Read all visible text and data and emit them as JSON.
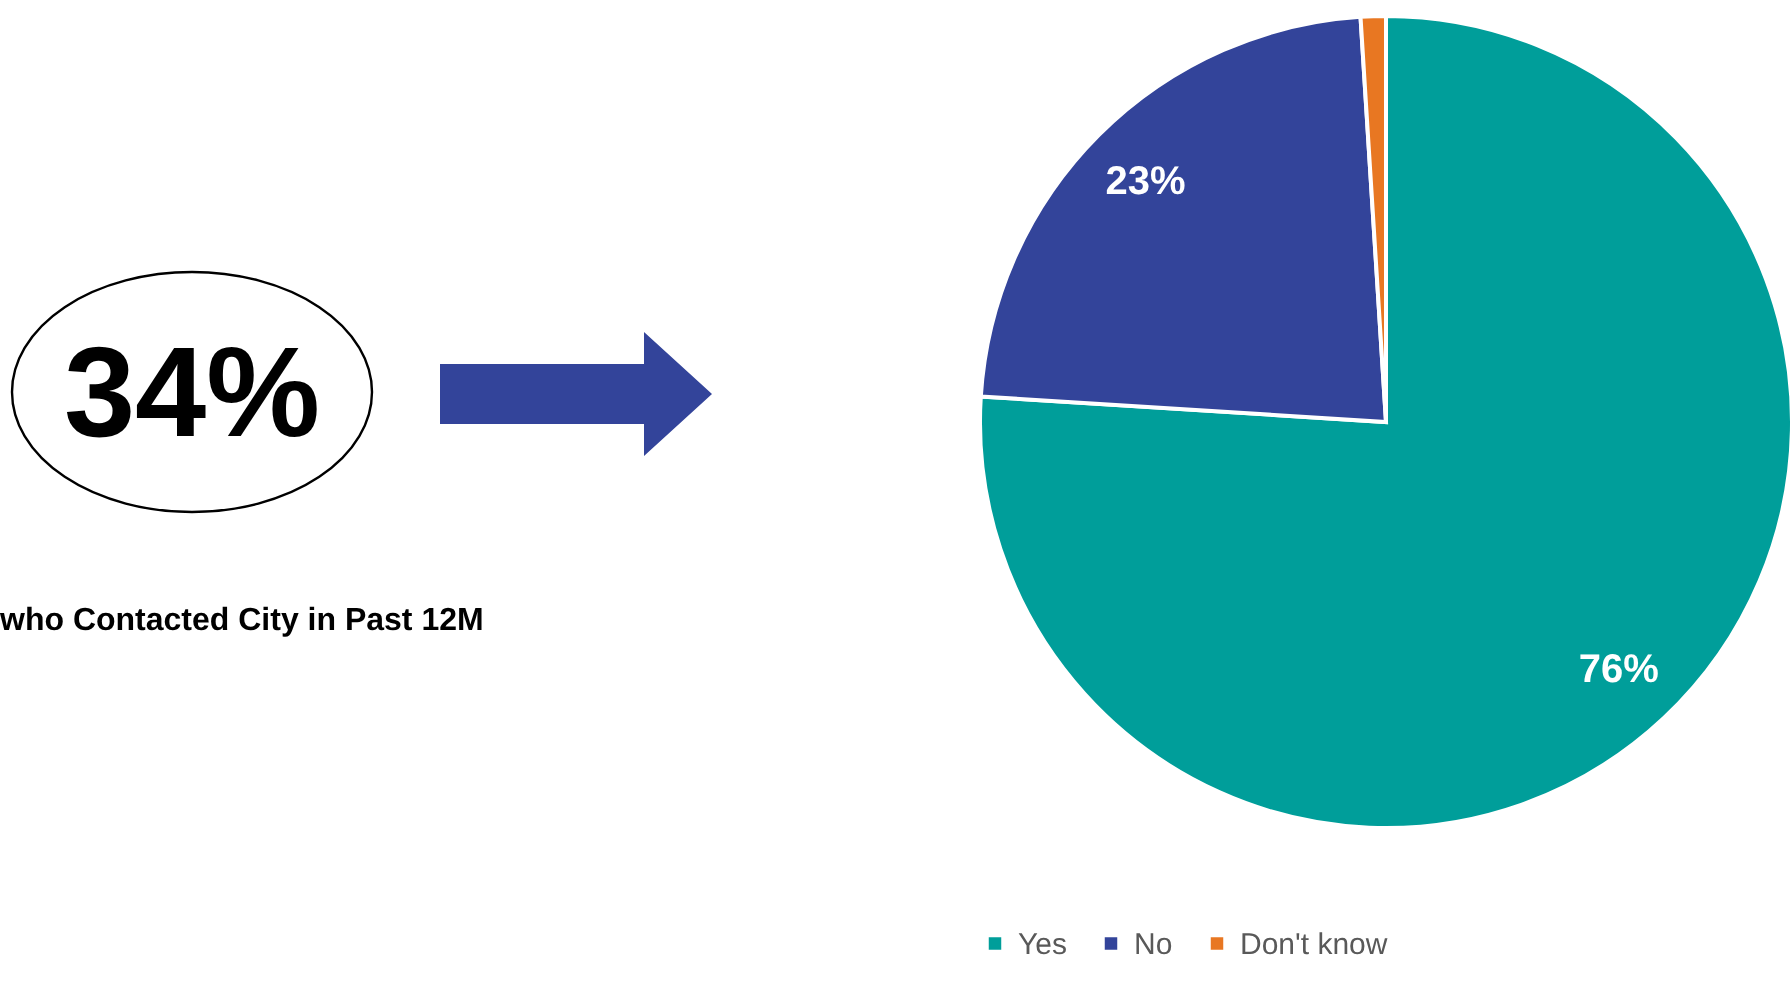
{
  "chart_data": {
    "type": "pie",
    "categories": [
      "Yes",
      "No",
      "Don't know"
    ],
    "values": [
      76,
      23,
      1
    ],
    "colors": [
      "#009e9a",
      "#33449a",
      "#e87722"
    ],
    "value_labels": [
      "76%",
      "23%",
      null
    ],
    "legend": "bottom",
    "annotations": [
      "34%",
      "who Contacted City in Past 12M"
    ]
  }
}
